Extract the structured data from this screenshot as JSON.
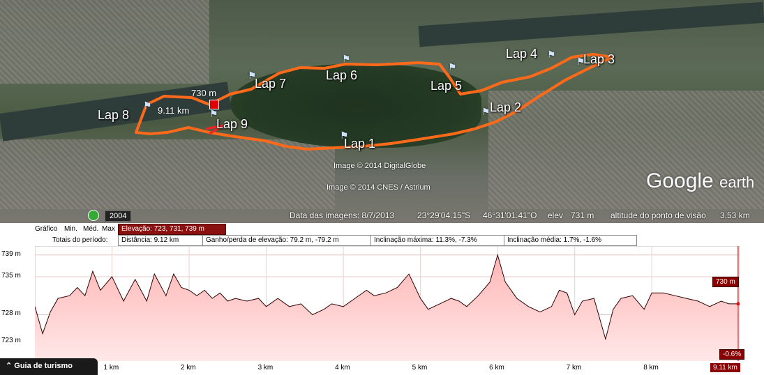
{
  "map": {
    "laps": [
      "Lap 1",
      "Lap 2",
      "Lap 3",
      "Lap 4",
      "Lap 5",
      "Lap 6",
      "Lap 7",
      "Lap 8",
      "Lap 9"
    ],
    "point_elevation": "730 m",
    "point_distance": "9.11 km",
    "credit1": "Image © 2014 DigitalGlobe",
    "credit2": "Image © 2014 CNES / Astrium",
    "logo_main": "Google",
    "logo_sub": "earth",
    "year": "2004",
    "status": {
      "date": "Data das imagens: 8/7/2013",
      "lat": "23°29'04.15\"S",
      "lon": "46°31'01.41\"O",
      "elev_label": "elev",
      "elev_value": "731 m",
      "eye_label": "altitude do ponto de visão",
      "eye_value": "3.53 km"
    }
  },
  "profile": {
    "graph_label": "Gráfico",
    "min": "Min.",
    "med": "Méd.",
    "max": "Max",
    "elevation_box": "Elevação: 723, 731, 739 m",
    "totals_label": "Totais do período:",
    "distance": "Distância: 9.12 km",
    "gain_loss": "Ganho/perda de elevação: 79.2 m, -79.2 m",
    "max_slope": "Inclinação máxima: 11.3%, -7.3%",
    "avg_slope": "Inclinação média: 1.7%, -1.6%",
    "cursor_elev": "730 m",
    "cursor_slope": "-0.6%",
    "cursor_dist": "9.11 km",
    "tour_guide": "Guia de turismo"
  },
  "chart_data": {
    "type": "area",
    "x_unit": "km",
    "y_unit": "m",
    "ylim": [
      721,
      740
    ],
    "xlim": [
      0,
      9.12
    ],
    "yticks": [
      "739 m",
      "735 m",
      "728 m",
      "723 m"
    ],
    "ytick_values": [
      739,
      735,
      728,
      723
    ],
    "xticks": [
      "1 km",
      "2 km",
      "3 km",
      "4 km",
      "5 km",
      "6 km",
      "7 km",
      "8 km",
      "9.11 km"
    ],
    "xtick_values": [
      1,
      2,
      3,
      4,
      5,
      6,
      7,
      8,
      9.11
    ],
    "x": [
      0,
      0.1,
      0.2,
      0.3,
      0.45,
      0.55,
      0.65,
      0.75,
      0.85,
      1.0,
      1.15,
      1.3,
      1.45,
      1.55,
      1.7,
      1.8,
      1.9,
      2.0,
      2.1,
      2.2,
      2.3,
      2.4,
      2.5,
      2.6,
      2.75,
      2.9,
      3.0,
      3.15,
      3.3,
      3.45,
      3.6,
      3.75,
      3.85,
      4.0,
      4.15,
      4.3,
      4.4,
      4.55,
      4.7,
      4.85,
      5.0,
      5.1,
      5.25,
      5.4,
      5.5,
      5.6,
      5.75,
      5.9,
      6.0,
      6.1,
      6.25,
      6.4,
      6.55,
      6.7,
      6.8,
      6.9,
      7.0,
      7.1,
      7.25,
      7.4,
      7.5,
      7.6,
      7.75,
      7.9,
      8.0,
      8.15,
      8.3,
      8.45,
      8.6,
      8.75,
      8.9,
      9.0,
      9.12
    ],
    "y": [
      729.5,
      724.5,
      728.5,
      731.0,
      731.5,
      733.0,
      731.5,
      736.0,
      732.5,
      735.0,
      730.5,
      734.5,
      730.5,
      735.5,
      731.5,
      735.5,
      733.0,
      732.5,
      731.5,
      732.5,
      731.0,
      732.0,
      730.5,
      731.0,
      730.5,
      731.0,
      729.5,
      731.0,
      729.5,
      730.0,
      728.0,
      729.0,
      730.0,
      729.5,
      731.0,
      732.5,
      731.5,
      732.0,
      733.0,
      735.5,
      731.0,
      729.0,
      730.0,
      731.0,
      730.5,
      729.5,
      731.5,
      734.0,
      739.0,
      734.0,
      731.0,
      729.5,
      728.5,
      729.5,
      732.5,
      732.0,
      728.0,
      730.5,
      731.0,
      723.5,
      729.0,
      731.0,
      731.5,
      729.0,
      732.0,
      732.0,
      731.5,
      731.0,
      730.5,
      729.5,
      730.5,
      730.0,
      730.0
    ]
  }
}
